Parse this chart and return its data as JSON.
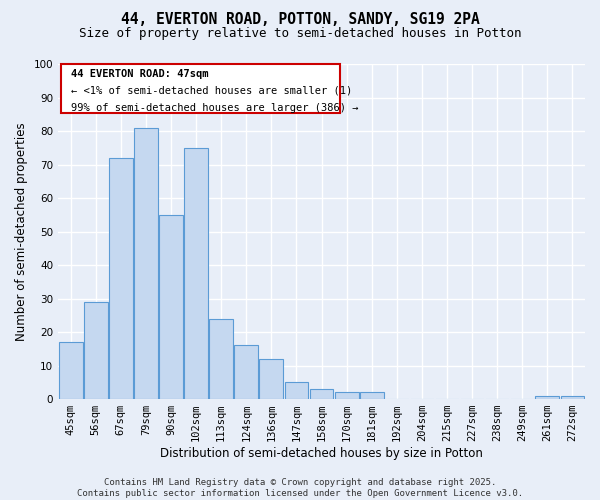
{
  "title_line1": "44, EVERTON ROAD, POTTON, SANDY, SG19 2PA",
  "title_line2": "Size of property relative to semi-detached houses in Potton",
  "xlabel": "Distribution of semi-detached houses by size in Potton",
  "ylabel": "Number of semi-detached properties",
  "categories": [
    "45sqm",
    "56sqm",
    "67sqm",
    "79sqm",
    "90sqm",
    "102sqm",
    "113sqm",
    "124sqm",
    "136sqm",
    "147sqm",
    "158sqm",
    "170sqm",
    "181sqm",
    "192sqm",
    "204sqm",
    "215sqm",
    "227sqm",
    "238sqm",
    "249sqm",
    "261sqm",
    "272sqm"
  ],
  "values": [
    17,
    29,
    72,
    81,
    55,
    75,
    24,
    16,
    12,
    5,
    3,
    2,
    2,
    0,
    0,
    0,
    0,
    0,
    0,
    1,
    1
  ],
  "bar_color": "#c5d8f0",
  "bar_edge_color": "#5b9bd5",
  "background_color": "#e8eef8",
  "grid_color": "#ffffff",
  "ylim": [
    0,
    100
  ],
  "yticks": [
    0,
    10,
    20,
    30,
    40,
    50,
    60,
    70,
    80,
    90,
    100
  ],
  "annotation_title": "44 EVERTON ROAD: 47sqm",
  "annotation_line1": "← <1% of semi-detached houses are smaller (1)",
  "annotation_line2": "99% of semi-detached houses are larger (386) →",
  "annotation_box_color": "#ffffff",
  "annotation_box_edge_color": "#cc0000",
  "footer_line1": "Contains HM Land Registry data © Crown copyright and database right 2025.",
  "footer_line2": "Contains public sector information licensed under the Open Government Licence v3.0.",
  "title_fontsize": 10.5,
  "subtitle_fontsize": 9,
  "axis_label_fontsize": 8.5,
  "tick_fontsize": 7.5,
  "annotation_fontsize": 7.5,
  "footer_fontsize": 6.5
}
